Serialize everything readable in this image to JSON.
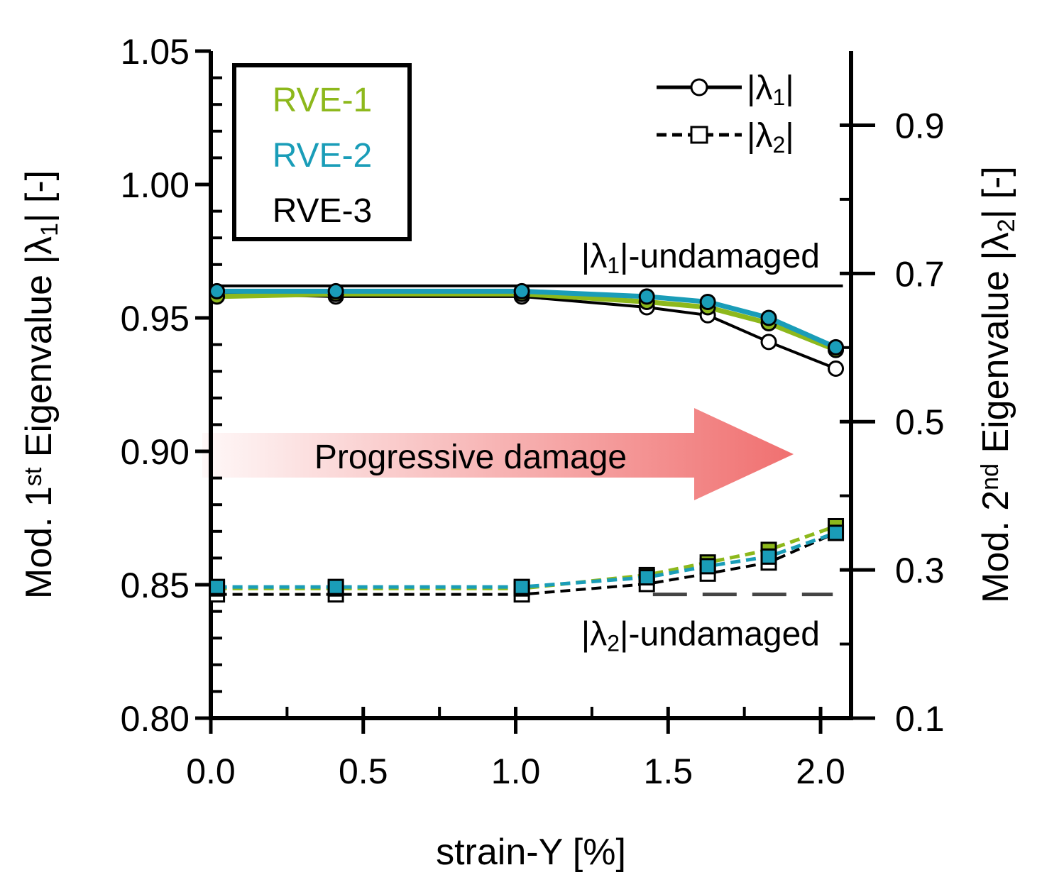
{
  "chart_data": {
    "type": "line",
    "title": "",
    "xlabel": "strain-Y [%]",
    "ylabel_left": {
      "prefix": "Mod. 1",
      "sup": "st",
      "mid": " Eigenvalue  |λ",
      "sub": "1",
      "suffix": "|  [-]"
    },
    "ylabel_right": {
      "prefix": "Mod. 2",
      "sup": "nd",
      "mid": " Eigenvalue  |λ",
      "sub": "2",
      "suffix": "|  [-]"
    },
    "xlim": [
      0.0,
      2.1
    ],
    "ylim_left": [
      0.8,
      1.05
    ],
    "ylim_right": [
      0.1,
      1.0
    ],
    "x_ticks": [
      "0.0",
      "0.5",
      "1.0",
      "1.5",
      "2.0"
    ],
    "y_ticks_left": [
      "0.80",
      "0.85",
      "0.90",
      "0.95",
      "1.00",
      "1.05"
    ],
    "y_ticks_right": [
      "0.1",
      "0.3",
      "0.5",
      "0.7",
      "0.9"
    ],
    "x": [
      0.02,
      0.41,
      1.02,
      1.43,
      1.63,
      1.83,
      2.05
    ],
    "series": [
      {
        "name": "RVE-1",
        "color": "#8DB81C",
        "lambda1": [
          0.958,
          0.959,
          0.959,
          0.956,
          0.954,
          0.948,
          0.938
        ],
        "lambda2": [
          0.275,
          0.275,
          0.275,
          0.293,
          0.31,
          0.327,
          0.359
        ]
      },
      {
        "name": "RVE-2",
        "color": "#1A9DB8",
        "lambda1": [
          0.96,
          0.96,
          0.96,
          0.958,
          0.956,
          0.95,
          0.939
        ],
        "lambda2": [
          0.277,
          0.277,
          0.277,
          0.29,
          0.305,
          0.318,
          0.35
        ]
      },
      {
        "name": "RVE-3",
        "color": "#000000",
        "lambda1": [
          0.959,
          0.958,
          0.958,
          0.954,
          0.951,
          0.941,
          0.931
        ],
        "lambda2": [
          0.267,
          0.267,
          0.267,
          0.281,
          0.295,
          0.31,
          0.35
        ]
      }
    ],
    "reference_lines": [
      {
        "name": "lambda1-undamaged",
        "axis": "left",
        "value": 0.962,
        "x_range": [
          0.0,
          2.05
        ],
        "style": "solid",
        "label_pre": "|λ",
        "label_sub": "1",
        "label_post": "|-undamaged"
      },
      {
        "name": "lambda2-undamaged",
        "axis": "right",
        "value": 0.267,
        "x_range": [
          0.0,
          2.05
        ],
        "style": "dashed",
        "label_pre": "|λ",
        "label_sub": "2",
        "label_post": "|-undamaged"
      }
    ],
    "legend_series": [
      "RVE-1",
      "RVE-2",
      "RVE-3"
    ],
    "legend_markers": [
      {
        "name": "lambda1",
        "marker": "circle",
        "style": "solid",
        "label_pre": "|λ",
        "label_sub": "1",
        "label_post": "|"
      },
      {
        "name": "lambda2",
        "marker": "square",
        "style": "dashed",
        "label_pre": "|λ",
        "label_sub": "2",
        "label_post": "|"
      }
    ],
    "annotation": {
      "text": "Progressive damage",
      "color": "#F07070"
    }
  }
}
